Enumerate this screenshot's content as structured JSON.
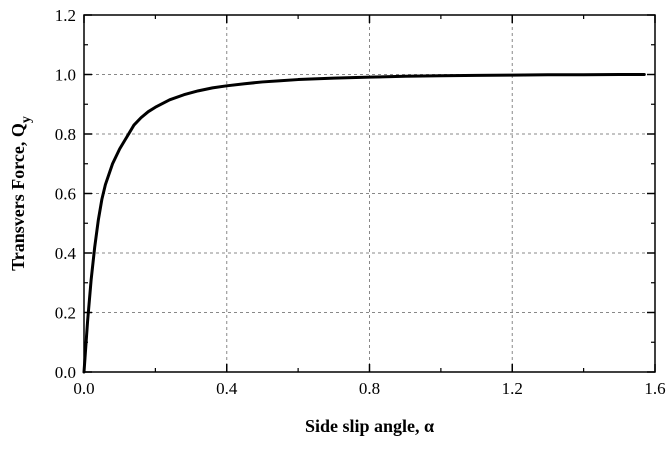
{
  "chart_data": {
    "type": "line",
    "xlabel": "Side slip angle, α",
    "ylabel_main": "Transvers Force, Q",
    "ylabel_sub": "y",
    "xlim": [
      0.0,
      1.6
    ],
    "ylim": [
      0.0,
      1.2
    ],
    "x_ticks": [
      0.0,
      0.4,
      0.8,
      1.2,
      1.6
    ],
    "x_tick_labels": [
      "0.0",
      "0.4",
      "0.8",
      "1.2",
      "1.6"
    ],
    "y_ticks": [
      0.0,
      0.2,
      0.4,
      0.6,
      0.8,
      1.0,
      1.2
    ],
    "y_tick_labels": [
      "0.0",
      "0.2",
      "0.4",
      "0.6",
      "0.8",
      "1.0",
      "1.2"
    ],
    "grid": true,
    "legend": "none",
    "line_color": "#000000",
    "grid_color": "#888888",
    "series": [
      {
        "x": [
          0.0,
          0.01,
          0.02,
          0.03,
          0.04,
          0.05,
          0.06,
          0.08,
          0.1,
          0.12,
          0.14,
          0.16,
          0.18,
          0.2,
          0.24,
          0.28,
          0.32,
          0.36,
          0.4,
          0.45,
          0.5,
          0.55,
          0.6,
          0.7,
          0.8,
          0.9,
          1.0,
          1.1,
          1.2,
          1.3,
          1.4,
          1.5,
          1.57
        ],
        "y": [
          0.0,
          0.17,
          0.31,
          0.42,
          0.51,
          0.58,
          0.63,
          0.7,
          0.75,
          0.79,
          0.83,
          0.855,
          0.875,
          0.89,
          0.915,
          0.932,
          0.945,
          0.955,
          0.962,
          0.969,
          0.975,
          0.979,
          0.983,
          0.988,
          0.991,
          0.994,
          0.996,
          0.997,
          0.998,
          0.999,
          0.999,
          1.0,
          1.0
        ]
      }
    ]
  }
}
